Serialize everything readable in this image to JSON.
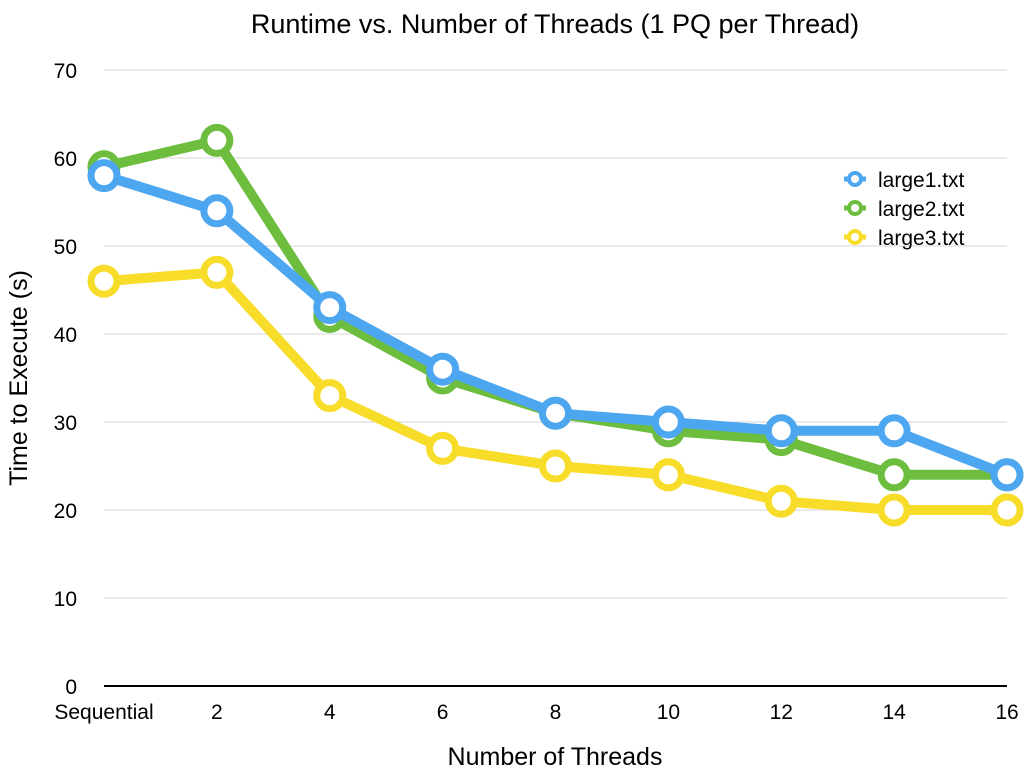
{
  "chart_data": {
    "type": "line",
    "title": "Runtime vs. Number of Threads (1 PQ per Thread)",
    "xlabel": "Number of Threads",
    "ylabel": "Time to Execute (s)",
    "categories": [
      "Sequential",
      "2",
      "4",
      "6",
      "8",
      "10",
      "12",
      "14",
      "16"
    ],
    "ylim": [
      0,
      70
    ],
    "yticks": [
      0,
      10,
      20,
      30,
      40,
      50,
      60,
      70
    ],
    "grid": true,
    "legend_position": "top-right",
    "series": [
      {
        "name": "large1.txt",
        "color": "#4da6f0",
        "values": [
          58,
          54,
          43,
          36,
          31,
          30,
          29,
          29,
          24
        ]
      },
      {
        "name": "large2.txt",
        "color": "#6dbd3e",
        "values": [
          59,
          62,
          42,
          35,
          31,
          29,
          28,
          24,
          24
        ]
      },
      {
        "name": "large3.txt",
        "color": "#f7dc2a",
        "values": [
          46,
          47,
          33,
          27,
          25,
          24,
          21,
          20,
          20
        ]
      }
    ]
  }
}
